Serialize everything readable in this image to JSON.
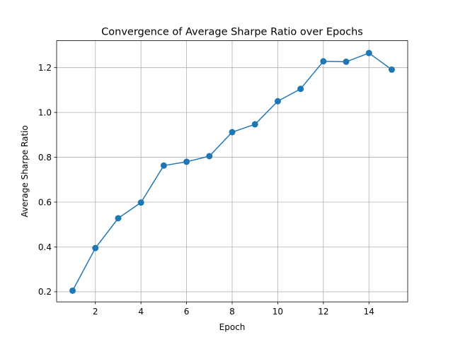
{
  "chart_data": {
    "type": "line",
    "title": "Convergence of Average Sharpe Ratio over Epochs",
    "xlabel": "Epoch",
    "ylabel": "Average Sharpe Ratio",
    "xlim": [
      0.3,
      15.7
    ],
    "ylim": [
      0.155,
      1.32
    ],
    "xticks": [
      2,
      4,
      6,
      8,
      10,
      12,
      14
    ],
    "yticks": [
      0.2,
      0.4,
      0.6,
      0.8,
      1.0,
      1.2
    ],
    "ytick_labels": [
      "0.2",
      "0.4",
      "0.6",
      "0.8",
      "1.0",
      "1.2"
    ],
    "grid": true,
    "series": [
      {
        "color": "#1f77b4",
        "marker": "circle",
        "x": [
          1,
          2,
          3,
          4,
          5,
          6,
          7,
          8,
          9,
          10,
          11,
          12,
          13,
          14,
          15
        ],
        "values": [
          0.205,
          0.395,
          0.528,
          0.598,
          0.763,
          0.78,
          0.805,
          0.912,
          0.947,
          1.05,
          1.105,
          1.228,
          1.226,
          1.265,
          1.191
        ]
      }
    ]
  }
}
